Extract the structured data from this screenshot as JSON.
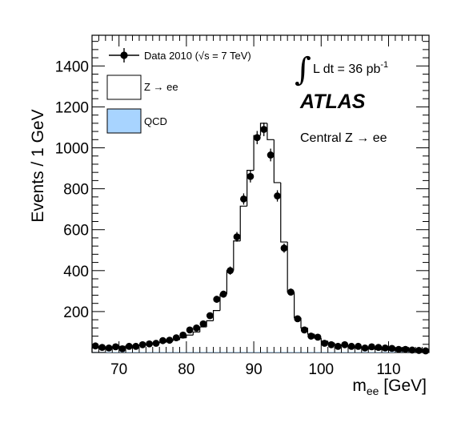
{
  "chart_data": {
    "type": "histogram",
    "xlabel_main": "m",
    "xlabel_sub": "ee",
    "xlabel_unit": " [GeV]",
    "ylabel": "Events / 1 GeV",
    "xlim": [
      66,
      116
    ],
    "ylim": [
      0,
      1550
    ],
    "x_ticks": [
      70,
      80,
      90,
      100,
      110
    ],
    "y_ticks": [
      200,
      400,
      600,
      800,
      1000,
      1200,
      1400
    ],
    "grid": false,
    "legend_position": "top-left",
    "legend": {
      "data_label": "Data 2010 (√s = 7 TeV)",
      "mc_label": "Z → ee",
      "qcd_label": "QCD",
      "qcd_color": "#a8d4ff"
    },
    "annotations": {
      "lumi_symbol": "∫",
      "lumi_text": "L dt = 36 pb",
      "lumi_exp": "-1",
      "experiment": "ATLAS",
      "selection": "Central Z → ee"
    },
    "bin_edges_start": 66,
    "bin_width": 1,
    "series": [
      {
        "name": "Z → ee",
        "kind": "step",
        "values": [
          22,
          24,
          26,
          28,
          30,
          32,
          34,
          37,
          40,
          45,
          50,
          55,
          62,
          72,
          85,
          100,
          125,
          155,
          205,
          285,
          400,
          545,
          715,
          890,
          1060,
          1120,
          1040,
          830,
          540,
          295,
          170,
          120,
          90,
          70,
          56,
          46,
          38,
          32,
          27,
          23,
          20,
          17,
          15,
          13,
          11,
          10,
          9,
          8,
          7,
          6
        ]
      },
      {
        "name": "QCD",
        "kind": "filled",
        "values": [
          3,
          3,
          3,
          3,
          3,
          3,
          3,
          3,
          3,
          3,
          3,
          3,
          3,
          3,
          3,
          3,
          3,
          3,
          3,
          3,
          3,
          3,
          3,
          3,
          3,
          3,
          3,
          3,
          3,
          3,
          3,
          3,
          3,
          3,
          3,
          3,
          3,
          3,
          3,
          3,
          3,
          3,
          3,
          3,
          3,
          3,
          3,
          3,
          3,
          3
        ]
      },
      {
        "name": "Data 2010 (√s = 7 TeV)",
        "kind": "points",
        "x": [
          66.5,
          67.5,
          68.5,
          69.5,
          70.5,
          71.5,
          72.5,
          73.5,
          74.5,
          75.5,
          76.5,
          77.5,
          78.5,
          79.5,
          80.5,
          81.5,
          82.5,
          83.5,
          84.5,
          85.5,
          86.5,
          87.5,
          88.5,
          89.5,
          90.5,
          91.5,
          92.5,
          93.5,
          94.5,
          95.5,
          96.5,
          97.5,
          98.5,
          99.5,
          100.5,
          101.5,
          102.5,
          103.5,
          104.5,
          105.5,
          106.5,
          107.5,
          108.5,
          109.5,
          110.5,
          111.5,
          112.5,
          113.5,
          114.5,
          115.5
        ],
        "values": [
          32,
          25,
          22,
          28,
          18,
          30,
          30,
          38,
          42,
          45,
          58,
          60,
          72,
          85,
          110,
          120,
          140,
          180,
          260,
          285,
          400,
          565,
          750,
          860,
          1050,
          1090,
          965,
          765,
          510,
          295,
          165,
          110,
          80,
          75,
          45,
          38,
          30,
          38,
          30,
          30,
          22,
          28,
          25,
          22,
          20,
          15,
          15,
          12,
          10,
          8
        ]
      }
    ]
  }
}
